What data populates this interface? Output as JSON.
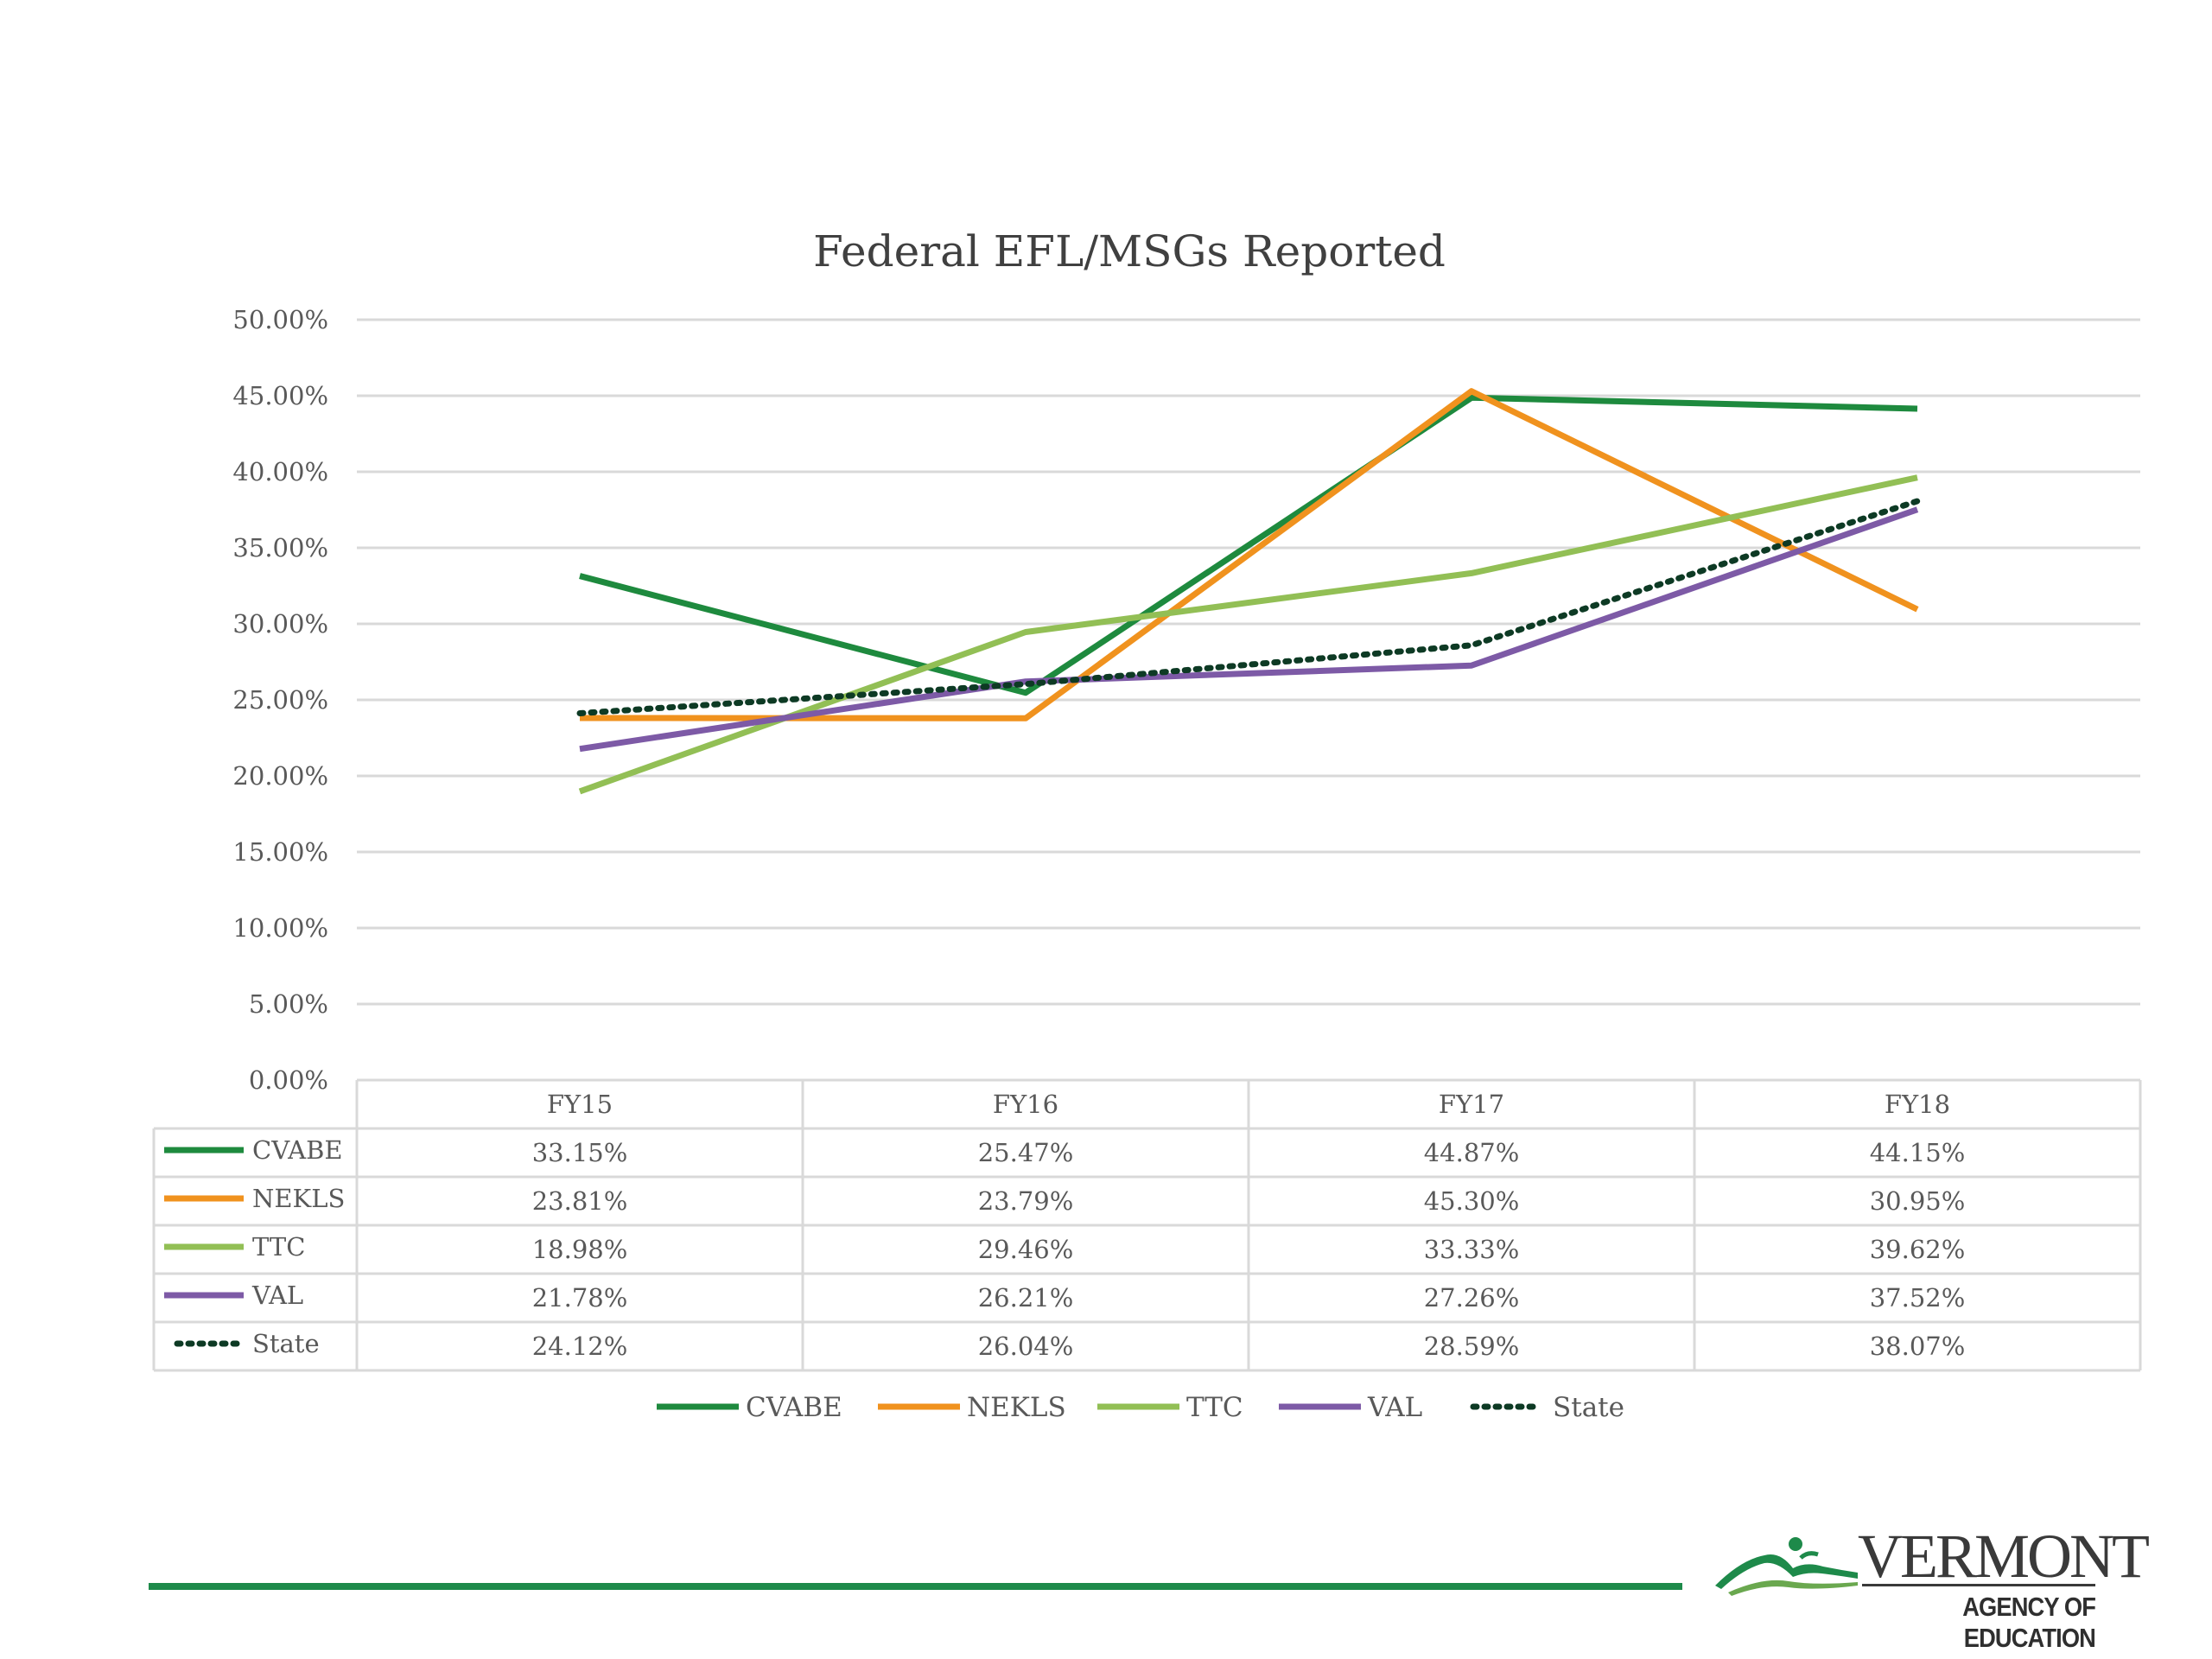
{
  "chart_data": {
    "type": "line",
    "title": "Federal EFL/MSGs Reported",
    "categories": [
      "FY15",
      "FY16",
      "FY17",
      "FY18"
    ],
    "y_ticks": [
      "50.00%",
      "45.00%",
      "40.00%",
      "35.00%",
      "30.00%",
      "25.00%",
      "20.00%",
      "15.00%",
      "10.00%",
      "5.00%",
      "0.00%"
    ],
    "ylim": [
      0,
      50
    ],
    "grid": true,
    "legend_placement": "bottom",
    "data_table": true,
    "series": [
      {
        "name": "CVABE",
        "color": "#1e8a3e",
        "style": "solid",
        "values": [
          33.15,
          25.47,
          44.87,
          44.15
        ],
        "labels": [
          "33.15%",
          "25.47%",
          "44.87%",
          "44.15%"
        ]
      },
      {
        "name": "NEKLS",
        "color": "#f0921e",
        "style": "solid",
        "values": [
          23.81,
          23.79,
          45.3,
          30.95
        ],
        "labels": [
          "23.81%",
          "23.79%",
          "45.30%",
          "30.95%"
        ]
      },
      {
        "name": "TTC",
        "color": "#92bf55",
        "style": "solid",
        "values": [
          18.98,
          29.46,
          33.33,
          39.62
        ],
        "labels": [
          "18.98%",
          "29.46%",
          "33.33%",
          "39.62%"
        ]
      },
      {
        "name": "VAL",
        "color": "#7d5aa6",
        "style": "solid",
        "values": [
          21.78,
          26.21,
          27.26,
          37.52
        ],
        "labels": [
          "21.78%",
          "26.21%",
          "27.26%",
          "37.52%"
        ]
      },
      {
        "name": "State",
        "color": "#0d3a24",
        "style": "dotted",
        "values": [
          24.12,
          26.04,
          28.59,
          38.07
        ],
        "labels": [
          "24.12%",
          "26.04%",
          "28.59%",
          "38.07%"
        ]
      }
    ]
  },
  "logo": {
    "wordmark": "VERMONT",
    "subtitle": "AGENCY OF EDUCATION",
    "color": "#1e8a4a"
  }
}
